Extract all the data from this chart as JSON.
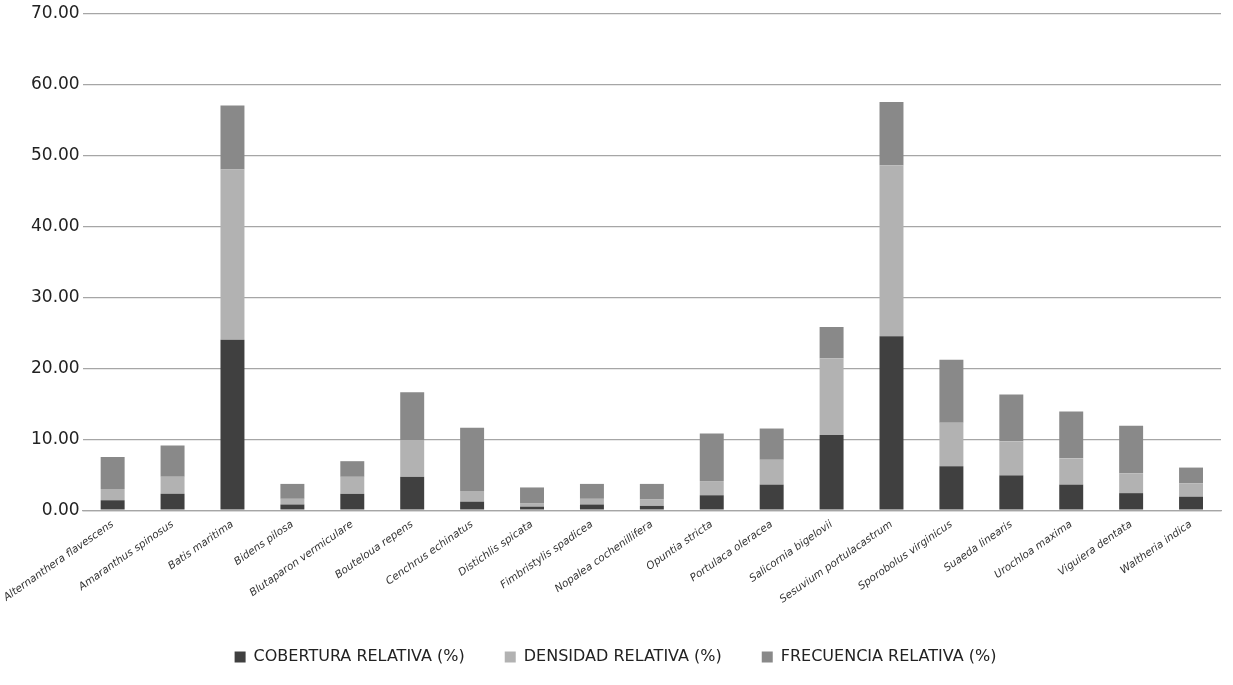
{
  "chart_data": {
    "type": "bar",
    "stacked": true,
    "legend": "bottom",
    "grid": "y",
    "categories": [
      "Alternanthera flavescens",
      "Amaranthus spinosus",
      "Batis maritima",
      "Bidens pilosa",
      "Blutaparon vermiculare",
      "Bouteloua repens",
      "Cenchrus echinatus",
      "Distichlis spicata",
      "Fimbristylis spadicea",
      "Nopalea cochenillifera",
      "Opuntia stricta",
      "Portulaca oleracea",
      "Salicornia bigelovii",
      "Sesuvium portulacastrum",
      "Sporobolus virginicus",
      "Suaeda linearis",
      "Urochloa maxima",
      "Viguiera dentata",
      "Waltheria indica"
    ],
    "series": [
      {
        "name": "COBERTURA RELATIVA (%)",
        "color": "#404040",
        "values": [
          1.4,
          2.3,
          24.0,
          0.8,
          2.3,
          4.7,
          1.2,
          0.5,
          0.8,
          0.6,
          2.1,
          3.6,
          10.6,
          24.5,
          6.2,
          4.9,
          3.6,
          2.4,
          1.9
        ]
      },
      {
        "name": "DENSIDAD RELATIVA (%)",
        "color": "#b2b2b2",
        "values": [
          1.6,
          2.4,
          24.0,
          0.8,
          2.4,
          5.2,
          1.5,
          0.5,
          0.8,
          0.9,
          2.0,
          3.5,
          10.8,
          24.1,
          6.1,
          4.8,
          3.7,
          2.8,
          1.9
        ]
      },
      {
        "name": "FRECUENCIA RELATIVA (%)",
        "color": "#898989",
        "values": [
          4.5,
          4.4,
          9.0,
          2.1,
          2.2,
          6.7,
          8.9,
          2.2,
          2.1,
          2.2,
          6.7,
          4.4,
          4.4,
          8.9,
          8.9,
          6.6,
          6.6,
          6.7,
          2.2
        ]
      }
    ],
    "ylim": [
      0,
      70
    ],
    "yticks": [
      {
        "value": 0,
        "label": "0.00"
      },
      {
        "value": 10,
        "label": "10.00"
      },
      {
        "value": 20,
        "label": "20.00"
      },
      {
        "value": 30,
        "label": "30.00"
      },
      {
        "value": 40,
        "label": "40.00"
      },
      {
        "value": 50,
        "label": "50.00"
      },
      {
        "value": 60,
        "label": "60.00"
      },
      {
        "value": 70,
        "label": "70.00"
      }
    ]
  }
}
